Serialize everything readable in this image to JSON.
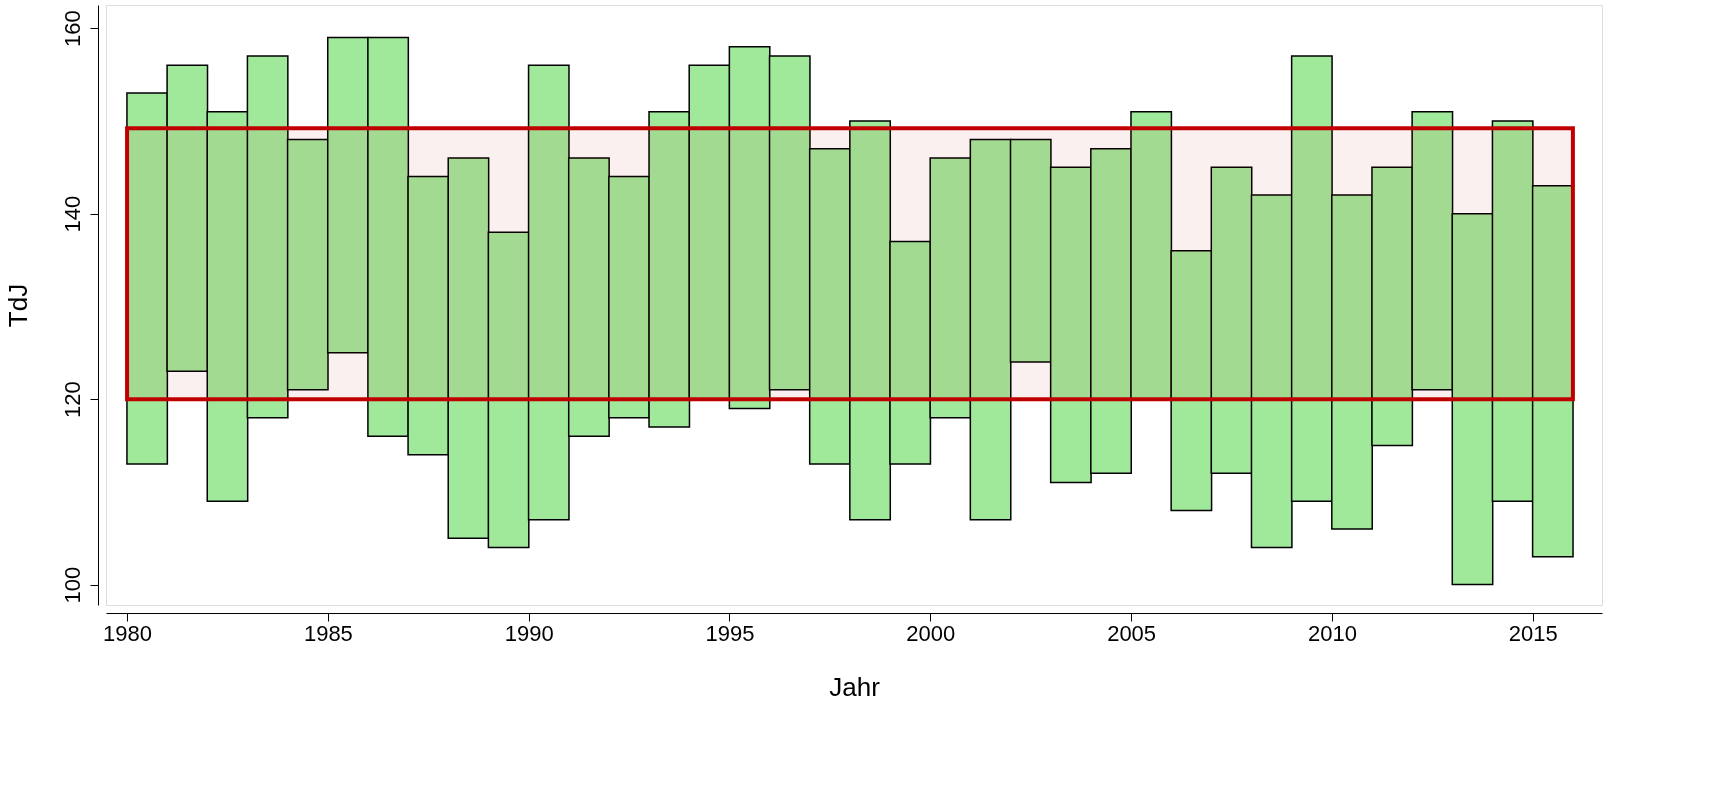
{
  "chart_data": {
    "type": "bar",
    "xlabel": "Jahr",
    "ylabel": "TdJ",
    "color": "#a0e89a",
    "x": [
      1980.5,
      1981.5,
      1982.5,
      1983.5,
      1984.5,
      1985.5,
      1986.5,
      1987.5,
      1988.5,
      1989.5,
      1990.5,
      1991.5,
      1992.5,
      1993.5,
      1994.5,
      1995.5,
      1996.5,
      1997.5,
      1998.5,
      1999.5,
      2000.5,
      2001.5,
      2002.5,
      2003.5,
      2004.5,
      2005.5,
      2006.5,
      2007.5,
      2008.5,
      2009.5,
      2010.5,
      2011.5,
      2012.5,
      2013.5,
      2014.5,
      2015.5
    ],
    "base": [
      113,
      123,
      109,
      118,
      121,
      125,
      116,
      114,
      105,
      104,
      107,
      116,
      118,
      117,
      120,
      119,
      121,
      113,
      107,
      113,
      118,
      107,
      124,
      111,
      112,
      120,
      108,
      112,
      104,
      109,
      106,
      115,
      121,
      100,
      109,
      103
    ],
    "values": [
      40,
      33,
      42,
      39,
      27,
      34,
      43,
      30,
      41,
      34,
      49,
      30,
      26,
      34,
      36,
      39,
      36,
      34,
      43,
      24,
      28,
      41,
      24,
      34,
      35,
      31,
      28,
      33,
      38,
      48,
      36,
      30,
      30,
      40,
      41,
      40
    ],
    "xlim": [
      1979.6,
      2016.6
    ],
    "xticks": [
      1980,
      1985,
      1990,
      1995,
      2000,
      2005,
      2010,
      2015
    ],
    "ylim": [
      97.8,
      162.5
    ],
    "yticks": [
      100,
      120,
      140,
      160
    ],
    "grid": false,
    "bands": [
      {
        "axis": "y",
        "from": 120,
        "to": 149.2,
        "color": "#c00000"
      }
    ]
  }
}
